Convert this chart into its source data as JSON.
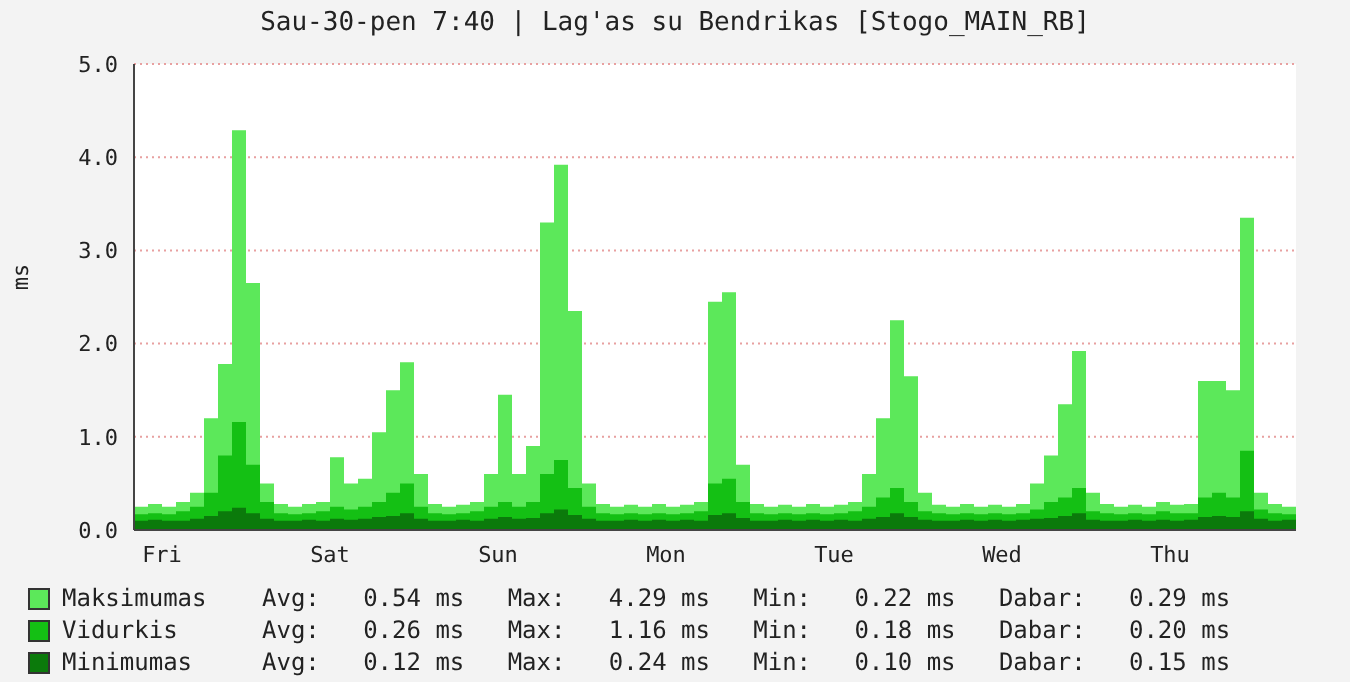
{
  "chart_data": {
    "type": "area",
    "title": "Sau-30-pen 7:40 | Lag'as su Bendrikas [Stogo_MAIN_RB]",
    "ylabel": "ms",
    "categories": [
      null,
      null,
      "Fri",
      null,
      null,
      null,
      null,
      null,
      null,
      null,
      null,
      null,
      null,
      null,
      "Sat",
      null,
      null,
      null,
      null,
      null,
      null,
      null,
      null,
      null,
      null,
      null,
      "Sun",
      null,
      null,
      null,
      null,
      null,
      null,
      null,
      null,
      null,
      null,
      null,
      "Mon",
      null,
      null,
      null,
      null,
      null,
      null,
      null,
      null,
      null,
      null,
      null,
      "Tue",
      null,
      null,
      null,
      null,
      null,
      null,
      null,
      null,
      null,
      null,
      null,
      "Wed",
      null,
      null,
      null,
      null,
      null,
      null,
      null,
      null,
      null,
      null,
      null,
      "Thu",
      null,
      null,
      null,
      null,
      null,
      null,
      null,
      null,
      null
    ],
    "series": [
      {
        "name": "Maksimumas",
        "color": "#5ce85a",
        "values": [
          0.25,
          0.28,
          0.25,
          0.3,
          0.4,
          1.2,
          1.78,
          4.29,
          2.65,
          0.5,
          0.28,
          0.25,
          0.28,
          0.3,
          0.78,
          0.5,
          0.55,
          1.05,
          1.5,
          1.8,
          0.6,
          0.28,
          0.25,
          0.27,
          0.3,
          0.6,
          1.45,
          0.6,
          0.9,
          3.3,
          3.92,
          2.35,
          0.5,
          0.28,
          0.25,
          0.27,
          0.25,
          0.28,
          0.25,
          0.27,
          0.3,
          2.45,
          2.55,
          0.7,
          0.28,
          0.25,
          0.27,
          0.25,
          0.28,
          0.25,
          0.27,
          0.3,
          0.6,
          1.2,
          2.25,
          1.65,
          0.4,
          0.27,
          0.25,
          0.28,
          0.25,
          0.27,
          0.25,
          0.28,
          0.5,
          0.8,
          1.35,
          1.92,
          0.4,
          0.28,
          0.25,
          0.27,
          0.25,
          0.3,
          0.27,
          0.28,
          1.6,
          1.6,
          1.5,
          3.35,
          0.4,
          0.28,
          0.25,
          0.27
        ]
      },
      {
        "name": "Vidurkis",
        "color": "#14c014",
        "values": [
          0.17,
          0.18,
          0.17,
          0.2,
          0.25,
          0.4,
          0.8,
          1.16,
          0.7,
          0.3,
          0.18,
          0.17,
          0.18,
          0.2,
          0.25,
          0.22,
          0.25,
          0.3,
          0.4,
          0.5,
          0.25,
          0.18,
          0.17,
          0.18,
          0.2,
          0.25,
          0.3,
          0.25,
          0.3,
          0.6,
          0.75,
          0.45,
          0.25,
          0.18,
          0.17,
          0.18,
          0.17,
          0.18,
          0.17,
          0.18,
          0.2,
          0.5,
          0.55,
          0.3,
          0.18,
          0.17,
          0.18,
          0.17,
          0.18,
          0.17,
          0.18,
          0.2,
          0.25,
          0.35,
          0.45,
          0.3,
          0.2,
          0.18,
          0.17,
          0.18,
          0.17,
          0.18,
          0.17,
          0.18,
          0.22,
          0.3,
          0.35,
          0.45,
          0.2,
          0.18,
          0.17,
          0.18,
          0.17,
          0.2,
          0.18,
          0.18,
          0.35,
          0.4,
          0.35,
          0.85,
          0.22,
          0.18,
          0.17,
          0.18
        ]
      },
      {
        "name": "Minimumas",
        "color": "#0b7a0b",
        "values": [
          0.1,
          0.11,
          0.1,
          0.1,
          0.12,
          0.15,
          0.2,
          0.24,
          0.18,
          0.12,
          0.1,
          0.1,
          0.11,
          0.1,
          0.12,
          0.11,
          0.12,
          0.14,
          0.15,
          0.18,
          0.12,
          0.1,
          0.1,
          0.11,
          0.1,
          0.12,
          0.14,
          0.12,
          0.13,
          0.18,
          0.22,
          0.16,
          0.12,
          0.1,
          0.1,
          0.11,
          0.1,
          0.11,
          0.1,
          0.11,
          0.1,
          0.16,
          0.18,
          0.13,
          0.1,
          0.1,
          0.11,
          0.1,
          0.11,
          0.1,
          0.11,
          0.1,
          0.12,
          0.14,
          0.18,
          0.14,
          0.11,
          0.1,
          0.1,
          0.11,
          0.1,
          0.11,
          0.1,
          0.11,
          0.12,
          0.13,
          0.15,
          0.18,
          0.11,
          0.1,
          0.1,
          0.11,
          0.1,
          0.11,
          0.1,
          0.11,
          0.14,
          0.15,
          0.14,
          0.2,
          0.12,
          0.1,
          0.11,
          0.15
        ]
      }
    ],
    "ylim": [
      0,
      5
    ],
    "yticks": [
      {
        "value": 0,
        "label": "0.0"
      },
      {
        "value": 1,
        "label": "1.0"
      },
      {
        "value": 2,
        "label": "2.0"
      },
      {
        "value": 3,
        "label": "3.0"
      },
      {
        "value": 4,
        "label": "4.0"
      },
      {
        "value": 5,
        "label": "5.0"
      }
    ],
    "grid": "y",
    "legend": "bottom",
    "annotations": [
      "Avg:   0.54 ms   Max:   4.29 ms   Min:   0.22 ms   Dabar:   0.29 ms",
      "Avg:   0.26 ms   Max:   1.16 ms   Min:   0.18 ms   Dabar:   0.20 ms",
      "Avg:   0.12 ms   Max:   0.24 ms   Min:   0.10 ms   Dabar:   0.15 ms"
    ]
  }
}
